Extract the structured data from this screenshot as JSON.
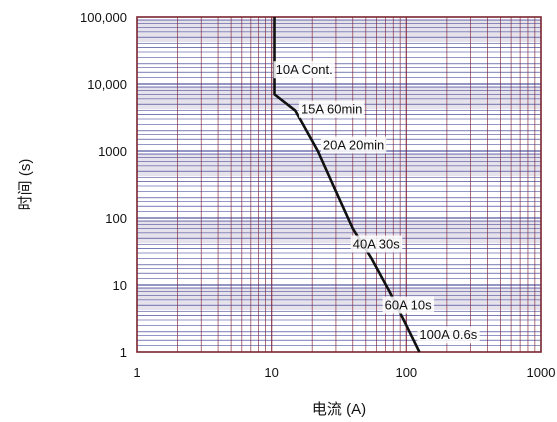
{
  "chart_data": {
    "type": "line",
    "xlabel": "电流 (A)",
    "ylabel": "时间 (s)",
    "x_scale": "log",
    "y_scale": "log",
    "xlim": [
      1,
      1000
    ],
    "ylim": [
      1,
      100000
    ],
    "x_tick_labels": [
      "1",
      "10",
      "100",
      "1000"
    ],
    "y_tick_labels": [
      "1",
      "10",
      "100",
      "1000",
      "10,000",
      "100,000"
    ],
    "grid": true,
    "colors": {
      "frame": "#7a2530",
      "vertical_grid": "#9c4a55",
      "horizontal_grid": "#2a2f8a",
      "band": "#e6e2ec",
      "curve": "#111111"
    },
    "series": [
      {
        "x": [
          10.5,
          10.5,
          10.5,
          10.5,
          15,
          22,
          30,
          40,
          55,
          75,
          100,
          125
        ],
        "y": [
          100000,
          30000,
          10000,
          7000,
          4000,
          1000,
          250,
          70,
          25,
          8,
          2.5,
          1
        ]
      }
    ],
    "annotations": [
      {
        "text": "10A Cont.",
        "x": 10.7,
        "y": 14000
      },
      {
        "text": "15A 60min",
        "x": 16.5,
        "y": 3600
      },
      {
        "text": "20A 20min",
        "x": 24,
        "y": 1050
      },
      {
        "text": "40A 30s",
        "x": 40,
        "y": 35
      },
      {
        "text": "60A 10s",
        "x": 69,
        "y": 4.3
      },
      {
        "text": "100A 0.6s",
        "x": 125,
        "y": 1.55
      }
    ]
  }
}
